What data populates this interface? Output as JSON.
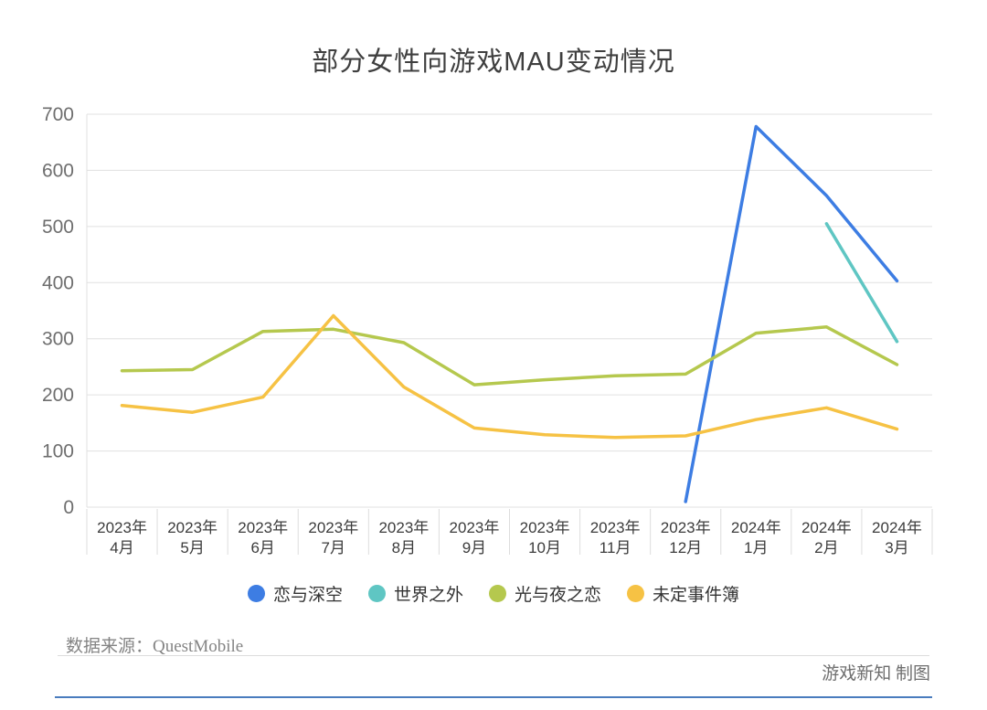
{
  "title": "部分女性向游戏MAU变动情况",
  "footer": {
    "source": "数据来源：QuestMobile",
    "credit": "游戏新知 制图",
    "divider_color": "#dcdcdc",
    "accent_line_color": "#4a7cbe"
  },
  "chart_data": {
    "type": "line",
    "title": "部分女性向游戏MAU变动情况",
    "xlabel": "",
    "ylabel": "",
    "grid": true,
    "legend_position": "bottom",
    "y_axis": {
      "min": 0,
      "max": 700,
      "step": 100
    },
    "categories": [
      [
        "2023年",
        "4月"
      ],
      [
        "2023年",
        "5月"
      ],
      [
        "2023年",
        "6月"
      ],
      [
        "2023年",
        "7月"
      ],
      [
        "2023年",
        "8月"
      ],
      [
        "2023年",
        "9月"
      ],
      [
        "2023年",
        "10月"
      ],
      [
        "2023年",
        "11月"
      ],
      [
        "2023年",
        "12月"
      ],
      [
        "2024年",
        "1月"
      ],
      [
        "2024年",
        "2月"
      ],
      [
        "2024年",
        "3月"
      ]
    ],
    "series": [
      {
        "name": "恋与深空",
        "color": "#3d7de3",
        "values": [
          null,
          null,
          null,
          null,
          null,
          null,
          null,
          null,
          10,
          678,
          555,
          403
        ]
      },
      {
        "name": "世界之外",
        "color": "#5fc6c3",
        "values": [
          null,
          null,
          null,
          null,
          null,
          null,
          null,
          null,
          null,
          null,
          505,
          295
        ]
      },
      {
        "name": "光与夜之恋",
        "color": "#b5c84e",
        "values": [
          243,
          245,
          313,
          317,
          293,
          218,
          227,
          234,
          237,
          310,
          321,
          254
        ]
      },
      {
        "name": "未定事件簿",
        "color": "#f6c244",
        "values": [
          181,
          169,
          196,
          341,
          214,
          141,
          129,
          124,
          127,
          156,
          177,
          139
        ]
      }
    ]
  }
}
